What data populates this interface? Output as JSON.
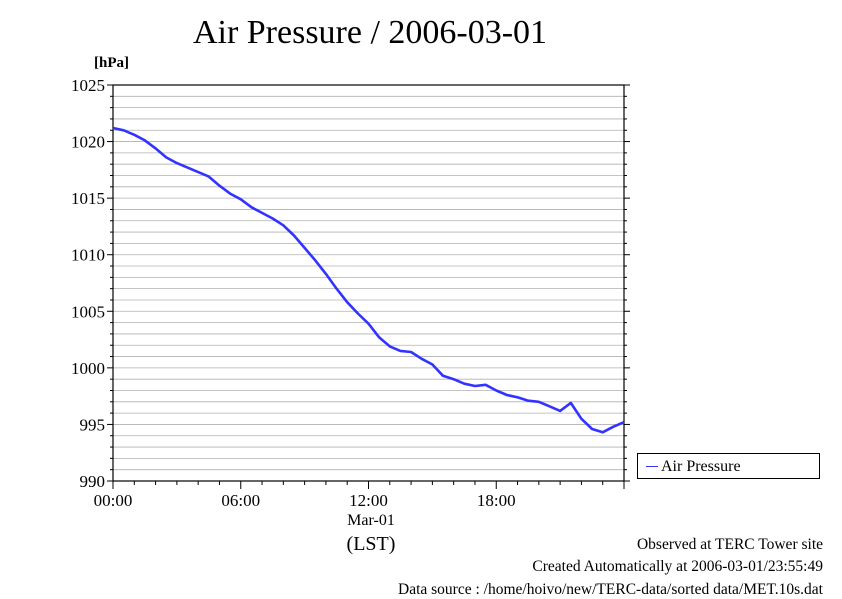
{
  "header": {
    "title": "Air Pressure / 2006-03-01",
    "unit": "[hPa]"
  },
  "chart_data": {
    "type": "line",
    "title": "Air Pressure / 2006-03-01",
    "ylabel": "[hPa]",
    "xlabel": "(LST)",
    "x_sublabel": "Mar-01",
    "ylim": [
      990,
      1025
    ],
    "xlim_hours": [
      0,
      24
    ],
    "y_ticks": [
      "990",
      "995",
      "1000",
      "1005",
      "1010",
      "1015",
      "1020",
      "1025"
    ],
    "x_ticks": [
      "00:00",
      "06:00",
      "12:00",
      "18:00"
    ],
    "grid": true,
    "legend_position": "right",
    "series": [
      {
        "name": "Air Pressure",
        "color": "#3333ff",
        "x_hours": [
          0,
          0.5,
          1,
          1.5,
          2,
          2.5,
          3,
          3.5,
          4,
          4.5,
          5,
          5.5,
          6,
          6.5,
          7,
          7.5,
          8,
          8.5,
          9,
          9.5,
          10,
          10.5,
          11,
          11.5,
          12,
          12.5,
          13,
          13.5,
          14,
          14.5,
          15,
          15.5,
          16,
          16.5,
          17,
          17.5,
          18,
          18.5,
          19,
          19.5,
          20,
          20.5,
          21,
          21.5,
          22,
          22.5,
          23,
          23.5,
          24
        ],
        "values": [
          1021.2,
          1021.0,
          1020.6,
          1020.1,
          1019.4,
          1018.6,
          1018.1,
          1017.7,
          1017.3,
          1016.9,
          1016.1,
          1015.4,
          1014.9,
          1014.2,
          1013.7,
          1013.2,
          1012.6,
          1011.7,
          1010.6,
          1009.5,
          1008.3,
          1007.0,
          1005.8,
          1004.8,
          1003.9,
          1002.7,
          1001.9,
          1001.5,
          1001.4,
          1000.8,
          1000.3,
          999.3,
          999.0,
          998.6,
          998.4,
          998.5,
          998.0,
          997.6,
          997.4,
          997.1,
          997.0,
          996.6,
          996.2,
          996.9,
          995.5,
          994.6,
          994.3,
          994.8,
          995.2
        ]
      }
    ]
  },
  "legend": {
    "label": "Air Pressure"
  },
  "footer": {
    "line1": "Observed at TERC Tower site",
    "line2": "Created Automatically at 2006-03-01/23:55:49",
    "line3": "Data source : /home/hoivo/new/TERC-data/sorted  data/MET.10s.dat"
  }
}
